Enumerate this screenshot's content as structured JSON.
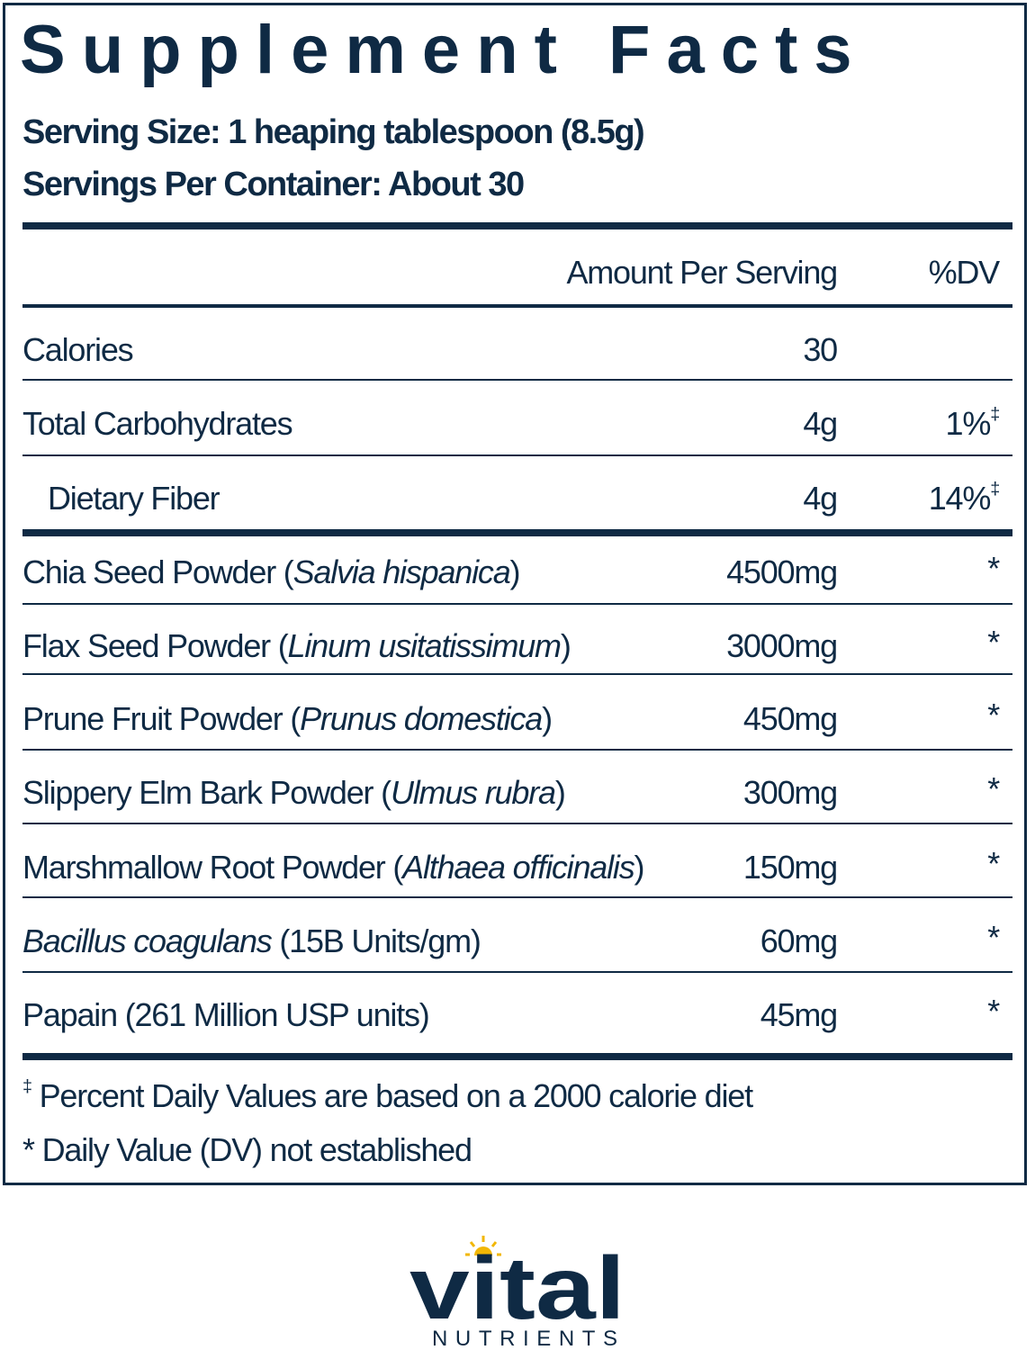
{
  "title": "Supplement Facts",
  "serving_size": "Serving Size: 1 heaping tablespoon (8.5g)",
  "servings_per_container": "Servings Per Container: About 30",
  "header": {
    "amount": "Amount Per Serving",
    "dv": "%DV"
  },
  "nutrients": [
    {
      "label": "Calories",
      "amount": "30",
      "dv": "",
      "mark": ""
    },
    {
      "label": "Total Carbohydrates",
      "amount": "4g",
      "dv": "1%",
      "mark": "‡"
    },
    {
      "label": "Dietary Fiber",
      "amount": "4g",
      "dv": "14%",
      "mark": "‡"
    }
  ],
  "ingredients": [
    {
      "pre": "Chia Seed Powder (",
      "italic": "Salvia hispanica",
      "post": ")",
      "amount": "4500mg",
      "dv": "*"
    },
    {
      "pre": "Flax Seed Powder (",
      "italic": "Linum usitatissimum",
      "post": ")",
      "amount": "3000mg",
      "dv": "*"
    },
    {
      "pre": "Prune Fruit Powder (",
      "italic": "Prunus domestica",
      "post": ")",
      "amount": "450mg",
      "dv": "*"
    },
    {
      "pre": "Slippery Elm Bark Powder (",
      "italic": "Ulmus rubra",
      "post": ")",
      "amount": "300mg",
      "dv": "*"
    },
    {
      "pre": "Marshmallow Root Powder (",
      "italic": "Althaea officinalis",
      "post": ")",
      "amount": "150mg",
      "dv": "*"
    },
    {
      "pre": "",
      "italic": "Bacillus coagulans",
      "post": " (15B Units/gm)",
      "amount": "60mg",
      "dv": "*"
    },
    {
      "pre": "Papain (261 Million USP units)",
      "italic": "",
      "post": "",
      "amount": "45mg",
      "dv": "*"
    }
  ],
  "footnotes": [
    {
      "mark": "‡",
      "text": " Percent Daily Values are based on a 2000 calorie diet"
    },
    {
      "mark": "*",
      "text": " Daily Value (DV) not established"
    }
  ],
  "logo": {
    "word": "vital",
    "sub": "NUTRIENTS",
    "colors": {
      "navy": "#0f2a44",
      "sun": "#f2b705"
    }
  }
}
